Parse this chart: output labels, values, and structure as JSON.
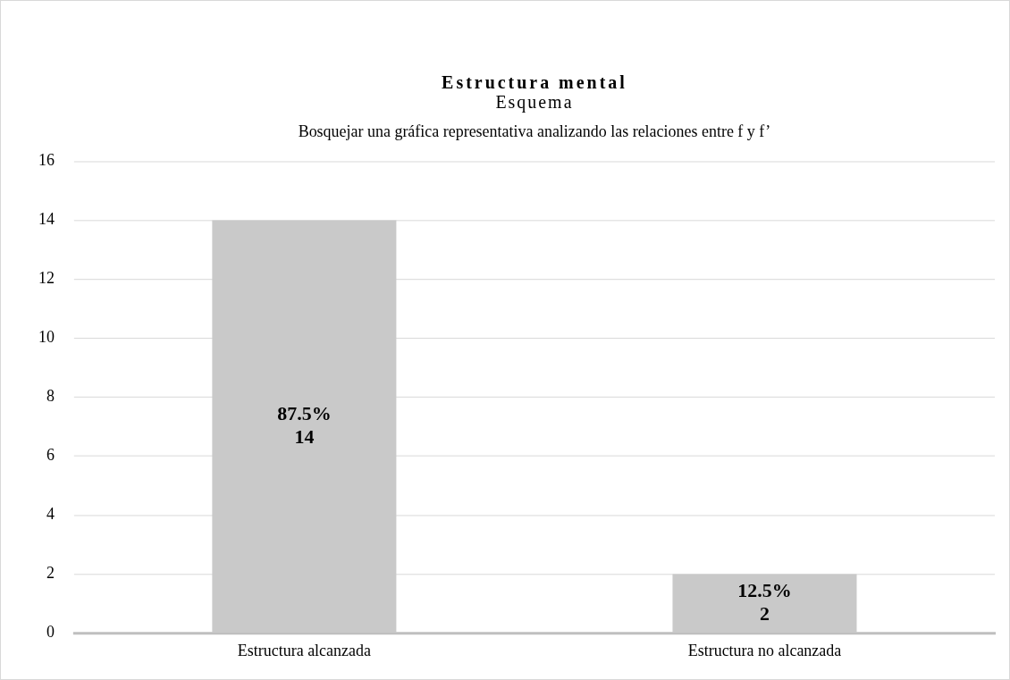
{
  "chart_data": {
    "type": "bar",
    "title": "Estructura mental",
    "subtitle": "Esquema",
    "annotations": [
      "Bosquejar una gráfica representativa analizando las relaciones entre f y f’"
    ],
    "categories": [
      "Estructura alcanzada",
      "Estructura no alcanzada"
    ],
    "values": [
      14,
      2
    ],
    "color": "#c9c9c9",
    "value_labels": [
      "87.5%\n14",
      "12.5%\n2"
    ],
    "ylim": [
      0,
      16
    ],
    "yticks": [
      0,
      2,
      4,
      6,
      8,
      10,
      12,
      14,
      16
    ],
    "grid": "y",
    "legend": false
  }
}
